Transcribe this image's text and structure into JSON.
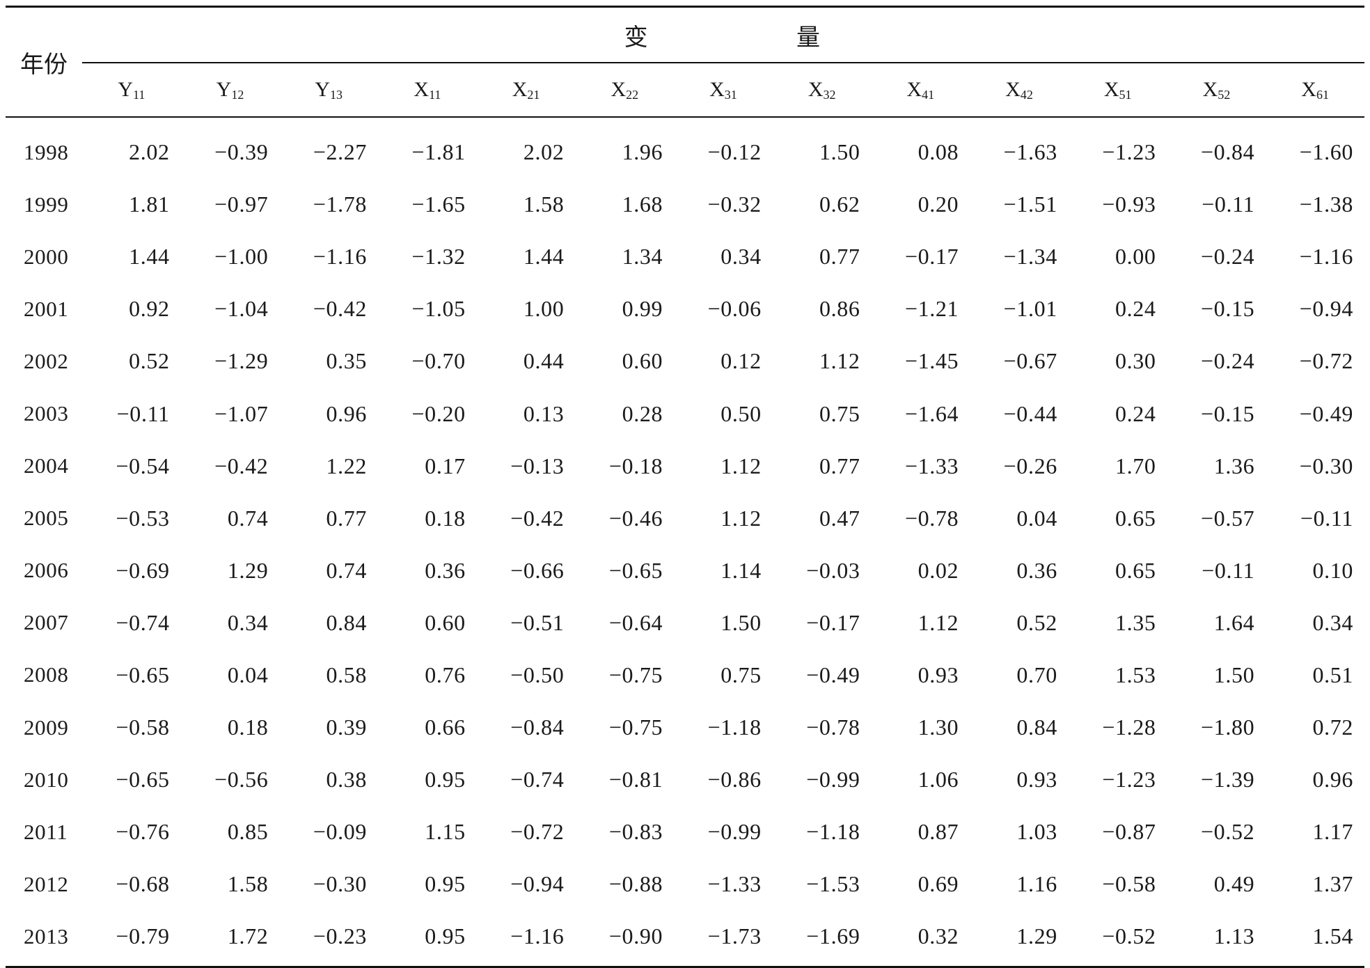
{
  "header": {
    "year_label": "年份",
    "group_label": [
      "变",
      "量"
    ],
    "variables": [
      {
        "base": "Y",
        "sub": "11"
      },
      {
        "base": "Y",
        "sub": "12"
      },
      {
        "base": "Y",
        "sub": "13"
      },
      {
        "base": "X",
        "sub": "11"
      },
      {
        "base": "X",
        "sub": "21"
      },
      {
        "base": "X",
        "sub": "22"
      },
      {
        "base": "X",
        "sub": "31"
      },
      {
        "base": "X",
        "sub": "32"
      },
      {
        "base": "X",
        "sub": "41"
      },
      {
        "base": "X",
        "sub": "42"
      },
      {
        "base": "X",
        "sub": "51"
      },
      {
        "base": "X",
        "sub": "52"
      },
      {
        "base": "X",
        "sub": "61"
      }
    ]
  },
  "rows": [
    {
      "year": "1998",
      "values": [
        "2.02",
        "−0.39",
        "−2.27",
        "−1.81",
        "2.02",
        "1.96",
        "−0.12",
        "1.50",
        "0.08",
        "−1.63",
        "−1.23",
        "−0.84",
        "−1.60"
      ]
    },
    {
      "year": "1999",
      "values": [
        "1.81",
        "−0.97",
        "−1.78",
        "−1.65",
        "1.58",
        "1.68",
        "−0.32",
        "0.62",
        "0.20",
        "−1.51",
        "−0.93",
        "−0.11",
        "−1.38"
      ]
    },
    {
      "year": "2000",
      "values": [
        "1.44",
        "−1.00",
        "−1.16",
        "−1.32",
        "1.44",
        "1.34",
        "0.34",
        "0.77",
        "−0.17",
        "−1.34",
        "0.00",
        "−0.24",
        "−1.16"
      ]
    },
    {
      "year": "2001",
      "values": [
        "0.92",
        "−1.04",
        "−0.42",
        "−1.05",
        "1.00",
        "0.99",
        "−0.06",
        "0.86",
        "−1.21",
        "−1.01",
        "0.24",
        "−0.15",
        "−0.94"
      ]
    },
    {
      "year": "2002",
      "values": [
        "0.52",
        "−1.29",
        "0.35",
        "−0.70",
        "0.44",
        "0.60",
        "0.12",
        "1.12",
        "−1.45",
        "−0.67",
        "0.30",
        "−0.24",
        "−0.72"
      ]
    },
    {
      "year": "2003",
      "values": [
        "−0.11",
        "−1.07",
        "0.96",
        "−0.20",
        "0.13",
        "0.28",
        "0.50",
        "0.75",
        "−1.64",
        "−0.44",
        "0.24",
        "−0.15",
        "−0.49"
      ]
    },
    {
      "year": "2004",
      "values": [
        "−0.54",
        "−0.42",
        "1.22",
        "0.17",
        "−0.13",
        "−0.18",
        "1.12",
        "0.77",
        "−1.33",
        "−0.26",
        "1.70",
        "1.36",
        "−0.30"
      ]
    },
    {
      "year": "2005",
      "values": [
        "−0.53",
        "0.74",
        "0.77",
        "0.18",
        "−0.42",
        "−0.46",
        "1.12",
        "0.47",
        "−0.78",
        "0.04",
        "0.65",
        "−0.57",
        "−0.11"
      ]
    },
    {
      "year": "2006",
      "values": [
        "−0.69",
        "1.29",
        "0.74",
        "0.36",
        "−0.66",
        "−0.65",
        "1.14",
        "−0.03",
        "0.02",
        "0.36",
        "0.65",
        "−0.11",
        "0.10"
      ]
    },
    {
      "year": "2007",
      "values": [
        "−0.74",
        "0.34",
        "0.84",
        "0.60",
        "−0.51",
        "−0.64",
        "1.50",
        "−0.17",
        "1.12",
        "0.52",
        "1.35",
        "1.64",
        "0.34"
      ]
    },
    {
      "year": "2008",
      "values": [
        "−0.65",
        "0.04",
        "0.58",
        "0.76",
        "−0.50",
        "−0.75",
        "0.75",
        "−0.49",
        "0.93",
        "0.70",
        "1.53",
        "1.50",
        "0.51"
      ]
    },
    {
      "year": "2009",
      "values": [
        "−0.58",
        "0.18",
        "0.39",
        "0.66",
        "−0.84",
        "−0.75",
        "−1.18",
        "−0.78",
        "1.30",
        "0.84",
        "−1.28",
        "−1.80",
        "0.72"
      ]
    },
    {
      "year": "2010",
      "values": [
        "−0.65",
        "−0.56",
        "0.38",
        "0.95",
        "−0.74",
        "−0.81",
        "−0.86",
        "−0.99",
        "1.06",
        "0.93",
        "−1.23",
        "−1.39",
        "0.96"
      ]
    },
    {
      "year": "2011",
      "values": [
        "−0.76",
        "0.85",
        "−0.09",
        "1.15",
        "−0.72",
        "−0.83",
        "−0.99",
        "−1.18",
        "0.87",
        "1.03",
        "−0.87",
        "−0.52",
        "1.17"
      ]
    },
    {
      "year": "2012",
      "values": [
        "−0.68",
        "1.58",
        "−0.30",
        "0.95",
        "−0.94",
        "−0.88",
        "−1.33",
        "−1.53",
        "0.69",
        "1.16",
        "−0.58",
        "0.49",
        "1.37"
      ]
    },
    {
      "year": "2013",
      "values": [
        "−0.79",
        "1.72",
        "−0.23",
        "0.95",
        "−1.16",
        "−0.90",
        "−1.73",
        "−1.69",
        "0.32",
        "1.29",
        "−0.52",
        "1.13",
        "1.54"
      ]
    }
  ]
}
